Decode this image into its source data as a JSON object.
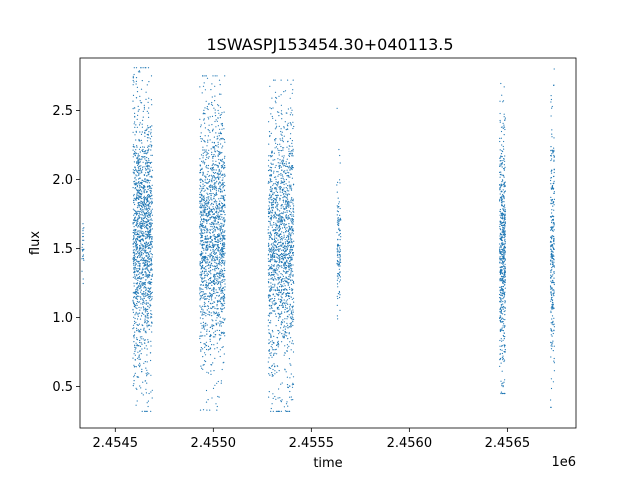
{
  "chart_data": {
    "type": "scatter",
    "title": "1SWASPJ153454.30+040113.5",
    "xlabel": "time",
    "ylabel": "flux",
    "x_offset_label": "1e6",
    "xlim": [
      2454320,
      2456850
    ],
    "ylim": [
      0.2,
      2.88
    ],
    "x_ticks": [
      2.4545,
      2.455,
      2.4555,
      2.456,
      2.4565
    ],
    "x_tick_labels": [
      "2.4545",
      "2.4550",
      "2.4555",
      "2.4560",
      "2.4565"
    ],
    "y_ticks": [
      0.5,
      1.0,
      1.5,
      2.0,
      2.5
    ],
    "y_tick_labels": [
      "0.5",
      "1.0",
      "1.5",
      "2.0",
      "2.5"
    ],
    "grid": false,
    "marker_color": "#1f77b4",
    "series": [
      {
        "clusters": [
          {
            "x_start": 2454330,
            "x_end": 2454340,
            "y_center": 1.52,
            "y_min": 0.91,
            "y_max": 1.86,
            "points": 25
          },
          {
            "x_start": 2454590,
            "x_end": 2454690,
            "y_center": 1.57,
            "y_min": 0.32,
            "y_max": 2.81,
            "points": 1500
          },
          {
            "x_start": 2454930,
            "x_end": 2455060,
            "y_center": 1.58,
            "y_min": 0.33,
            "y_max": 2.75,
            "points": 1600
          },
          {
            "x_start": 2455280,
            "x_end": 2455410,
            "y_center": 1.53,
            "y_min": 0.32,
            "y_max": 2.72,
            "points": 1500
          },
          {
            "x_start": 2455630,
            "x_end": 2455650,
            "y_center": 1.55,
            "y_min": 0.96,
            "y_max": 2.53,
            "points": 120
          },
          {
            "x_start": 2456460,
            "x_end": 2456490,
            "y_center": 1.52,
            "y_min": 0.45,
            "y_max": 2.74,
            "points": 600
          },
          {
            "x_start": 2456720,
            "x_end": 2456740,
            "y_center": 1.52,
            "y_min": 0.35,
            "y_max": 2.8,
            "points": 300
          }
        ]
      }
    ]
  }
}
